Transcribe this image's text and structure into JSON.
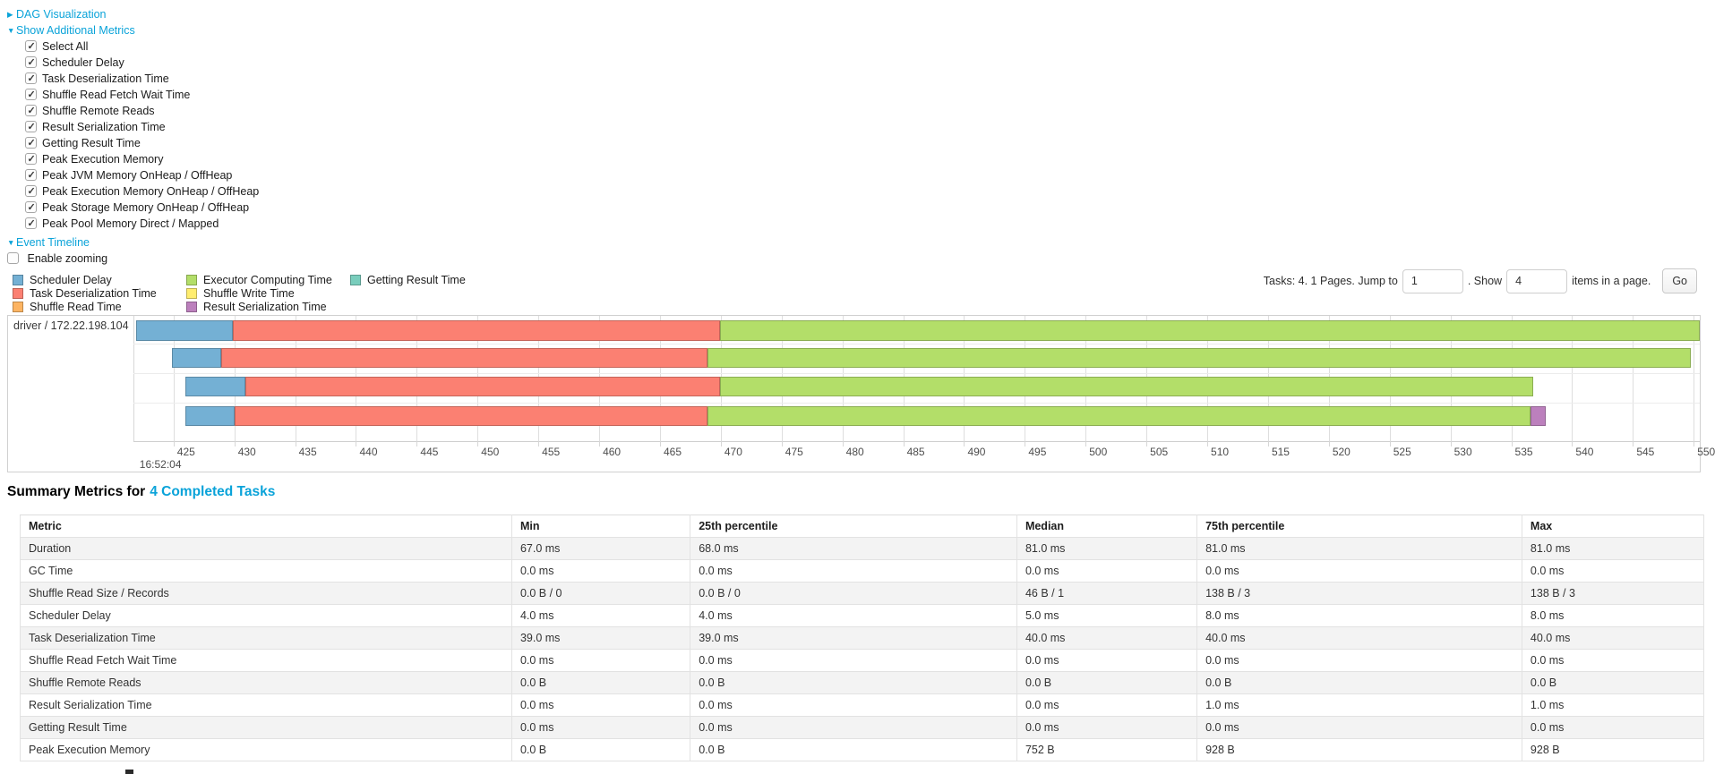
{
  "palette": {
    "scheduler_delay": "#74B0D4",
    "task_deserialization_time": "#FB8072",
    "shuffle_read_time": "#FDB462",
    "executor_computing_time": "#B3DE69",
    "shuffle_write_time": "#FFED6F",
    "result_serialization_time": "#BC80BD",
    "getting_result_time": "#79CDBC",
    "link_blue": "#0aa3d9"
  },
  "links": {
    "dag": "DAG Visualization",
    "show_metrics": "Show Additional Metrics",
    "event_timeline": "Event Timeline"
  },
  "metric_checkboxes": [
    {
      "label": "Select All",
      "checked": true
    },
    {
      "label": "Scheduler Delay",
      "checked": true
    },
    {
      "label": "Task Deserialization Time",
      "checked": true
    },
    {
      "label": "Shuffle Read Fetch Wait Time",
      "checked": true
    },
    {
      "label": "Shuffle Remote Reads",
      "checked": true
    },
    {
      "label": "Result Serialization Time",
      "checked": true
    },
    {
      "label": "Getting Result Time",
      "checked": true
    },
    {
      "label": "Peak Execution Memory",
      "checked": true
    },
    {
      "label": "Peak JVM Memory OnHeap / OffHeap",
      "checked": true
    },
    {
      "label": "Peak Execution Memory OnHeap / OffHeap",
      "checked": true
    },
    {
      "label": "Peak Storage Memory OnHeap / OffHeap",
      "checked": true
    },
    {
      "label": "Peak Pool Memory Direct / Mapped",
      "checked": true
    }
  ],
  "enable_zooming": {
    "label": "Enable zooming",
    "checked": false
  },
  "legend_columns": [
    [
      {
        "key": "scheduler_delay",
        "label": "Scheduler Delay"
      },
      {
        "key": "task_deserialization_time",
        "label": "Task Deserialization Time"
      },
      {
        "key": "shuffle_read_time",
        "label": "Shuffle Read Time"
      }
    ],
    [
      {
        "key": "executor_computing_time",
        "label": "Executor Computing Time"
      },
      {
        "key": "shuffle_write_time",
        "label": "Shuffle Write Time"
      },
      {
        "key": "result_serialization_time",
        "label": "Result Serialization Time"
      }
    ],
    [
      {
        "key": "getting_result_time",
        "label": "Getting Result Time"
      }
    ]
  ],
  "pagination": {
    "tasks_text": "Tasks: 4. 1 Pages. Jump to",
    "jump_value": "1",
    "show_text": ". Show",
    "show_value": "4",
    "items_text": "items in a page.",
    "go_label": "Go"
  },
  "chart_data": {
    "type": "timeline",
    "title": "Event Timeline",
    "group_label": "driver / 172.22.198.104",
    "x_axis": {
      "min": 421.7,
      "max": 550.5,
      "tick_interval": 5,
      "ticks": [
        "425",
        "430",
        "435",
        "440",
        "445",
        "450",
        "455",
        "460",
        "465",
        "470",
        "475",
        "480",
        "485",
        "490",
        "495",
        "500",
        "505",
        "510",
        "515",
        "520",
        "525",
        "530",
        "535",
        "540",
        "545",
        "550"
      ],
      "base_time_label": "16:52:04"
    },
    "rows": [
      {
        "segments": [
          {
            "name": "scheduler_delay",
            "start": 421.9,
            "end": 429.9
          },
          {
            "name": "task_deserialization_time",
            "start": 429.9,
            "end": 469.9
          },
          {
            "name": "executor_computing_time",
            "start": 469.9,
            "end": 550.5
          }
        ]
      },
      {
        "segments": [
          {
            "name": "scheduler_delay",
            "start": 424.9,
            "end": 428.9
          },
          {
            "name": "task_deserialization_time",
            "start": 428.9,
            "end": 468.9
          },
          {
            "name": "executor_computing_time",
            "start": 468.9,
            "end": 549.8
          }
        ]
      },
      {
        "segments": [
          {
            "name": "scheduler_delay",
            "start": 426.0,
            "end": 430.9
          },
          {
            "name": "task_deserialization_time",
            "start": 430.9,
            "end": 469.9
          },
          {
            "name": "executor_computing_time",
            "start": 469.9,
            "end": 536.8
          }
        ]
      },
      {
        "segments": [
          {
            "name": "scheduler_delay",
            "start": 426.0,
            "end": 430.0
          },
          {
            "name": "task_deserialization_time",
            "start": 430.0,
            "end": 468.9
          },
          {
            "name": "executor_computing_time",
            "start": 468.9,
            "end": 536.6
          },
          {
            "name": "result_serialization_time",
            "start": 536.6,
            "end": 537.8
          }
        ]
      }
    ]
  },
  "summary_table": {
    "title_prefix": "Summary Metrics for",
    "title_link": "4 Completed Tasks",
    "columns": [
      "Metric",
      "Min",
      "25th percentile",
      "Median",
      "75th percentile",
      "Max"
    ],
    "rows": [
      [
        "Duration",
        "67.0 ms",
        "68.0 ms",
        "81.0 ms",
        "81.0 ms",
        "81.0 ms"
      ],
      [
        "GC Time",
        "0.0 ms",
        "0.0 ms",
        "0.0 ms",
        "0.0 ms",
        "0.0 ms"
      ],
      [
        "Shuffle Read Size / Records",
        "0.0 B / 0",
        "0.0 B / 0",
        "46 B / 1",
        "138 B / 3",
        "138 B / 3"
      ],
      [
        "Scheduler Delay",
        "4.0 ms",
        "4.0 ms",
        "5.0 ms",
        "8.0 ms",
        "8.0 ms"
      ],
      [
        "Task Deserialization Time",
        "39.0 ms",
        "39.0 ms",
        "40.0 ms",
        "40.0 ms",
        "40.0 ms"
      ],
      [
        "Shuffle Read Fetch Wait Time",
        "0.0 ms",
        "0.0 ms",
        "0.0 ms",
        "0.0 ms",
        "0.0 ms"
      ],
      [
        "Shuffle Remote Reads",
        "0.0 B",
        "0.0 B",
        "0.0 B",
        "0.0 B",
        "0.0 B"
      ],
      [
        "Result Serialization Time",
        "0.0 ms",
        "0.0 ms",
        "0.0 ms",
        "1.0 ms",
        "1.0 ms"
      ],
      [
        "Getting Result Time",
        "0.0 ms",
        "0.0 ms",
        "0.0 ms",
        "0.0 ms",
        "0.0 ms"
      ],
      [
        "Peak Execution Memory",
        "0.0 B",
        "0.0 B",
        "752 B",
        "928 B",
        "928 B"
      ]
    ]
  }
}
